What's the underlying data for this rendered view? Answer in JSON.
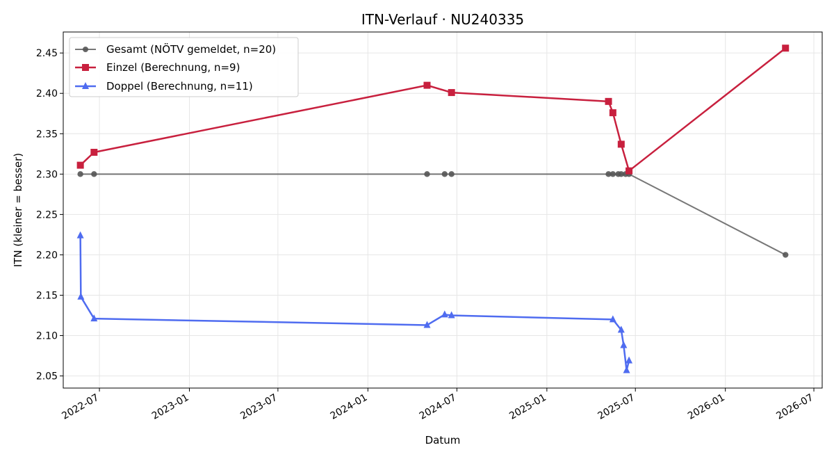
{
  "chart_data": {
    "type": "line",
    "title": "ITN-Verlauf · NU240335",
    "xlabel": "Datum",
    "ylabel": "ITN  (kleiner = besser)",
    "x_axis_type": "date",
    "xlim": [
      "2022-04-18",
      "2026-07-18"
    ],
    "ylim": [
      2.035,
      2.476
    ],
    "x_ticks": [
      "2022-07-01",
      "2023-01-01",
      "2023-07-01",
      "2024-01-01",
      "2024-07-01",
      "2025-01-01",
      "2025-07-01",
      "2026-01-01",
      "2026-07-01"
    ],
    "x_tick_labels": [
      "2022-07",
      "2023-01",
      "2023-07",
      "2024-01",
      "2024-07",
      "2025-01",
      "2025-07",
      "2026-01",
      "2026-07"
    ],
    "y_ticks": [
      2.05,
      2.1,
      2.15,
      2.2,
      2.25,
      2.3,
      2.35,
      2.4,
      2.45
    ],
    "y_tick_labels": [
      "2.05",
      "2.10",
      "2.15",
      "2.20",
      "2.25",
      "2.30",
      "2.35",
      "2.40",
      "2.45"
    ],
    "grid": true,
    "legend_position": "top-left",
    "series": [
      {
        "name": "Gesamt (NÖTV gemeldet, n=20)",
        "color": "#555555",
        "marker": "circle",
        "points": [
          {
            "x": "2022-05-23",
            "y": 2.3
          },
          {
            "x": "2022-06-20",
            "y": 2.3
          },
          {
            "x": "2024-05-01",
            "y": 2.3
          },
          {
            "x": "2024-06-06",
            "y": 2.3
          },
          {
            "x": "2024-06-20",
            "y": 2.3
          },
          {
            "x": "2025-05-07",
            "y": 2.3
          },
          {
            "x": "2025-05-16",
            "y": 2.3
          },
          {
            "x": "2025-05-27",
            "y": 2.3
          },
          {
            "x": "2025-06-02",
            "y": 2.3
          },
          {
            "x": "2025-06-11",
            "y": 2.3
          },
          {
            "x": "2025-06-18",
            "y": 2.3
          },
          {
            "x": "2026-05-04",
            "y": 2.2
          }
        ]
      },
      {
        "name": "Einzel (Berechnung, n=9)",
        "color": "#c8203e",
        "marker": "square",
        "points": [
          {
            "x": "2022-05-23",
            "y": 2.311
          },
          {
            "x": "2022-06-20",
            "y": 2.327
          },
          {
            "x": "2024-05-01",
            "y": 2.41
          },
          {
            "x": "2024-06-20",
            "y": 2.401
          },
          {
            "x": "2025-05-07",
            "y": 2.39
          },
          {
            "x": "2025-05-16",
            "y": 2.376
          },
          {
            "x": "2025-06-02",
            "y": 2.337
          },
          {
            "x": "2025-06-18",
            "y": 2.304
          },
          {
            "x": "2026-05-04",
            "y": 2.456
          }
        ]
      },
      {
        "name": "Doppel (Berechnung, n=11)",
        "color": "#4f6cf0",
        "marker": "triangle",
        "points": [
          {
            "x": "2022-05-23",
            "y": 2.224
          },
          {
            "x": "2022-05-24",
            "y": 2.148
          },
          {
            "x": "2022-06-20",
            "y": 2.121
          },
          {
            "x": "2024-05-01",
            "y": 2.113
          },
          {
            "x": "2024-06-06",
            "y": 2.126
          },
          {
            "x": "2024-06-20",
            "y": 2.125
          },
          {
            "x": "2025-05-16",
            "y": 2.12
          },
          {
            "x": "2025-06-02",
            "y": 2.107
          },
          {
            "x": "2025-06-07",
            "y": 2.088
          },
          {
            "x": "2025-06-13",
            "y": 2.057
          },
          {
            "x": "2025-06-18",
            "y": 2.069
          }
        ]
      }
    ]
  }
}
